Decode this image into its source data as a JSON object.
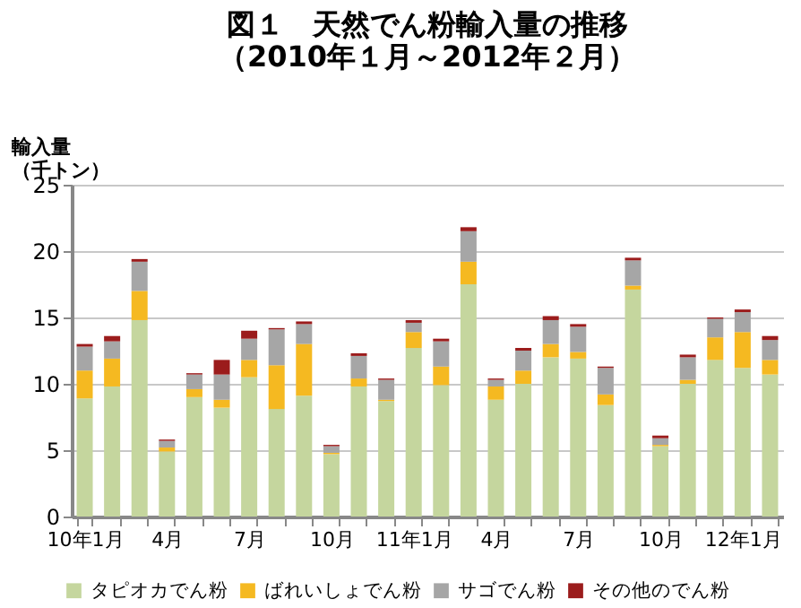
{
  "chart_data": {
    "type": "bar",
    "stacked": true,
    "title": "図１　天然でん粉輸入量の推移（2010年１月～2012年２月）",
    "ylabel": "輸入量（千トン）",
    "categories": [
      "10年1月",
      null,
      null,
      "4月",
      null,
      null,
      "7月",
      null,
      null,
      "10月",
      null,
      null,
      "11年1月",
      null,
      null,
      "4月",
      null,
      null,
      "7月",
      null,
      null,
      "10月",
      null,
      null,
      "12年1月",
      null
    ],
    "series": [
      {
        "name": "タピオカでん粉",
        "color": "#c5d69e",
        "values": [
          8.9,
          9.8,
          14.8,
          4.9,
          9.0,
          8.2,
          10.5,
          8.1,
          9.1,
          4.7,
          9.8,
          8.7,
          12.7,
          9.9,
          17.5,
          8.8,
          10.0,
          12.0,
          11.9,
          8.4,
          17.1,
          5.3,
          10.0,
          11.8,
          11.2,
          10.7
        ]
      },
      {
        "name": "ばれいしょでん粉",
        "color": "#f5b921",
        "values": [
          2.1,
          2.1,
          2.2,
          0.3,
          0.6,
          0.6,
          1.3,
          3.3,
          3.9,
          0.1,
          0.6,
          0.1,
          1.2,
          1.4,
          1.7,
          1.0,
          1.0,
          1.0,
          0.5,
          0.8,
          0.3,
          0.1,
          0.3,
          1.7,
          2.7,
          1.1
        ]
      },
      {
        "name": "サゴでん粉",
        "color": "#a6a6a6",
        "values": [
          1.8,
          1.3,
          2.2,
          0.5,
          1.1,
          1.9,
          1.6,
          2.7,
          1.5,
          0.5,
          1.7,
          1.5,
          0.7,
          1.9,
          2.3,
          0.5,
          1.5,
          1.8,
          1.9,
          2.0,
          1.9,
          0.5,
          1.7,
          1.4,
          1.5,
          1.5
        ]
      },
      {
        "name": "その他のでん粉",
        "color": "#9b1c1c",
        "values": [
          0.2,
          0.4,
          0.2,
          0.1,
          0.1,
          1.1,
          0.6,
          0.1,
          0.2,
          0.1,
          0.2,
          0.1,
          0.2,
          0.2,
          0.3,
          0.1,
          0.2,
          0.3,
          0.2,
          0.1,
          0.2,
          0.2,
          0.2,
          0.1,
          0.2,
          0.3
        ]
      }
    ],
    "ylim": [
      0,
      25
    ],
    "yticks": [
      0,
      5,
      10,
      15,
      20,
      25
    ],
    "grid": "y",
    "legend": "bottom"
  }
}
